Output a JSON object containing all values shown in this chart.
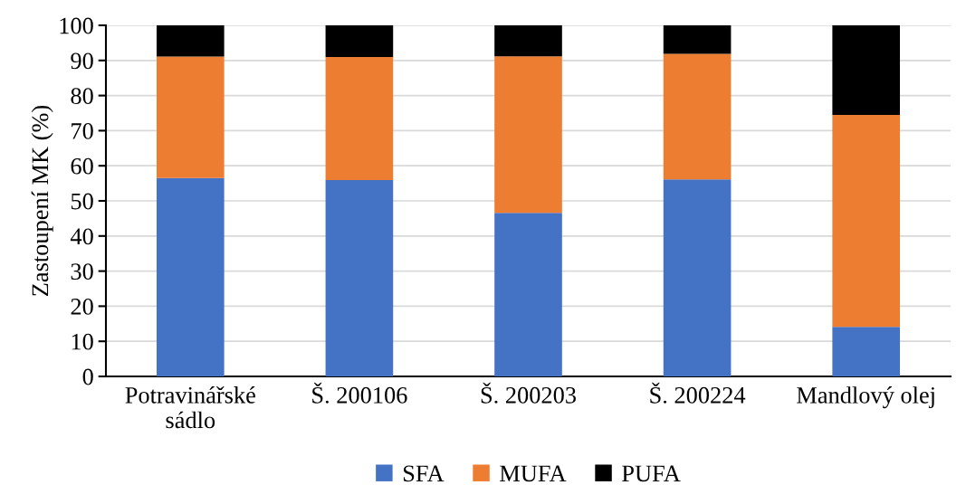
{
  "chart_data": {
    "type": "bar",
    "stacked": true,
    "ylabel": "Zastoupení MK (%)",
    "categories": [
      "Potravinářské\nsádlo",
      "Š. 200106",
      "Š. 200203",
      "Š. 200224",
      "Mandlový olej"
    ],
    "series": [
      {
        "name": "SFA",
        "color": "#4472c4",
        "values": [
          56.5,
          55.9,
          46.6,
          56.1,
          14.1
        ]
      },
      {
        "name": "MUFA",
        "color": "#ed7d31",
        "values": [
          34.6,
          35.1,
          44.6,
          35.8,
          60.4
        ]
      },
      {
        "name": "PUFA",
        "color": "#000000",
        "values": [
          8.9,
          9.0,
          8.8,
          8.1,
          25.5
        ]
      }
    ],
    "ylim": [
      0,
      100
    ],
    "yticks": [
      0,
      10,
      20,
      30,
      40,
      50,
      60,
      70,
      80,
      90,
      100
    ],
    "grid": "y",
    "legend": "bottom"
  }
}
